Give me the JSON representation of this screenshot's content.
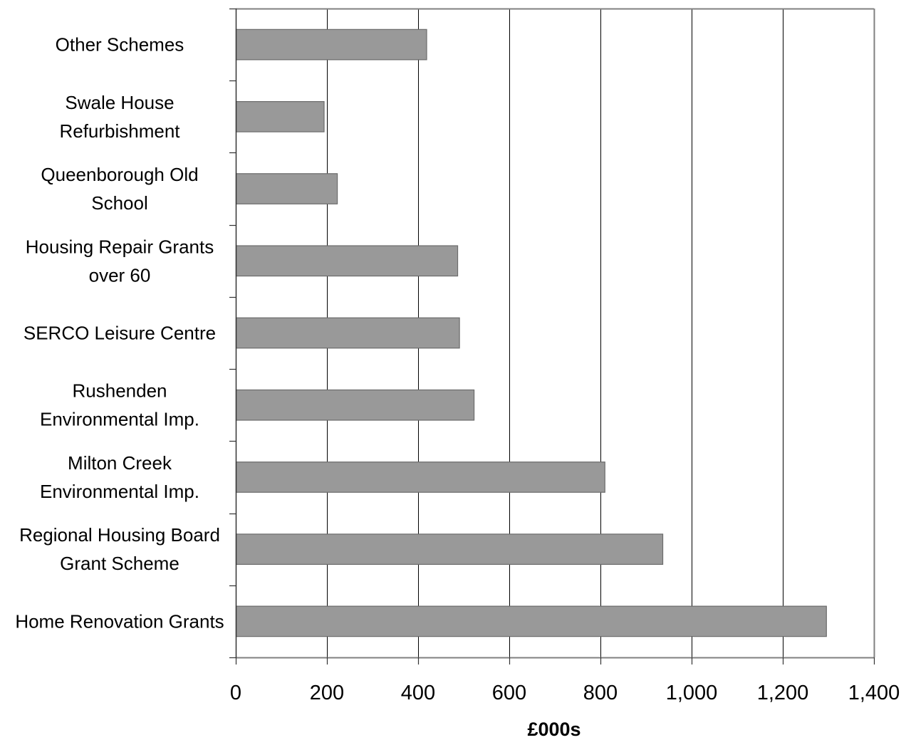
{
  "chart_data": {
    "type": "bar",
    "orientation": "horizontal",
    "title": "",
    "xlabel": "£000s",
    "ylabel": "",
    "xlim": [
      0,
      1400
    ],
    "x_ticks": [
      0,
      200,
      400,
      600,
      800,
      1000,
      1200,
      1400
    ],
    "x_tick_labels": [
      "0",
      "200",
      "400",
      "600",
      "800",
      "1,000",
      "1,200",
      "1,400"
    ],
    "grid": "vertical",
    "legend": "none",
    "categories": [
      [
        "Other Schemes"
      ],
      [
        "Swale House",
        "Refurbishment"
      ],
      [
        "Queenborough Old",
        "School"
      ],
      [
        "Housing Repair Grants",
        "over 60"
      ],
      [
        "SERCO Leisure Centre"
      ],
      [
        "Rushenden",
        "Environmental Imp."
      ],
      [
        "Milton Creek",
        "Environmental Imp."
      ],
      [
        "Regional Housing Board",
        "Grant Scheme"
      ],
      [
        "Home Renovation Grants"
      ]
    ],
    "values": [
      418,
      193,
      222,
      486,
      490,
      522,
      809,
      936,
      1295
    ],
    "colors": {
      "bar_fill": "#999999",
      "bar_stroke": "#6b6b6b",
      "grid": "#000000",
      "frame": "#808080"
    }
  }
}
